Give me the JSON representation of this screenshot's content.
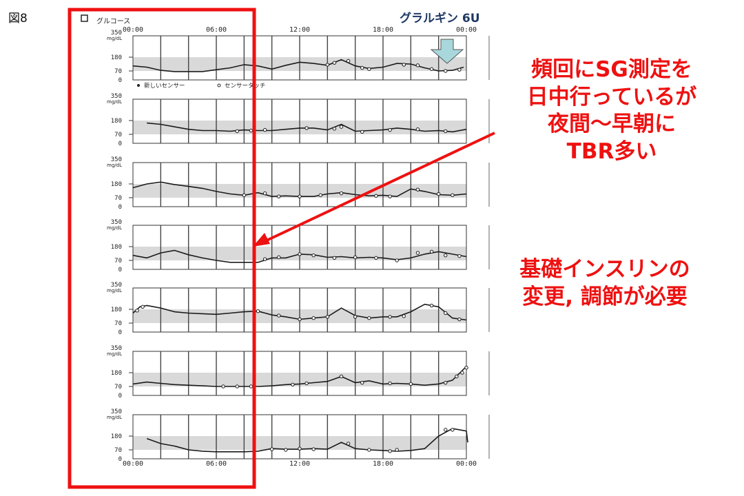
{
  "figure_label": "図8",
  "drug_label": "グラルギン 6U",
  "annotation_frequent": [
    "頻回にSG測定を",
    "日中行っているが",
    "夜間〜早朝に",
    "TBR多い"
  ],
  "annotation_basal": [
    "基礎インスリンの",
    "変更, 調節が必要"
  ],
  "chart_data": {
    "type": "line",
    "title": "グルコース",
    "legend": [
      "新しいセンサー",
      "センサータッチ"
    ],
    "x_tick_labels": [
      "00:00",
      "06:00",
      "12:00",
      "18:00",
      "00:00"
    ],
    "y_unit": "mg/dL",
    "y_tick_labels": [
      "350",
      "180",
      "70",
      "0"
    ],
    "ylim": [
      0,
      350
    ],
    "target_range": [
      70,
      180
    ],
    "x_range_hours": [
      0,
      24
    ],
    "days": [
      {
        "gaps": [
          [
            3.0,
            4.0
          ]
        ],
        "points": [
          [
            0,
            110
          ],
          [
            1,
            100
          ],
          [
            2,
            75
          ],
          [
            3,
            65
          ],
          [
            4,
            65
          ],
          [
            5,
            65
          ],
          [
            6,
            80
          ],
          [
            7,
            95
          ],
          [
            8,
            120
          ],
          [
            9,
            110
          ],
          [
            10,
            85
          ],
          [
            11,
            115
          ],
          [
            12,
            140
          ],
          [
            13,
            130
          ],
          [
            14,
            115
          ],
          [
            15,
            160
          ],
          [
            16,
            110
          ],
          [
            17,
            90
          ],
          [
            18,
            100
          ],
          [
            19,
            130
          ],
          [
            20,
            125
          ],
          [
            21,
            95
          ],
          [
            22,
            70
          ],
          [
            23,
            75
          ],
          [
            23.8,
            100
          ]
        ],
        "touches": [
          [
            14,
            120
          ],
          [
            14.5,
            135
          ],
          [
            15.5,
            150
          ],
          [
            16.5,
            95
          ],
          [
            17,
            85
          ],
          [
            19.5,
            120
          ],
          [
            20.5,
            115
          ],
          [
            21.5,
            85
          ],
          [
            22.5,
            70
          ],
          [
            23.5,
            80
          ]
        ]
      },
      {
        "gaps": [],
        "points": [
          [
            1,
            160
          ],
          [
            2,
            150
          ],
          [
            3,
            130
          ],
          [
            4,
            110
          ],
          [
            5,
            100
          ],
          [
            6,
            100
          ],
          [
            7,
            95
          ],
          [
            8,
            105
          ],
          [
            9,
            100
          ],
          [
            10,
            100
          ],
          [
            11,
            110
          ],
          [
            12,
            120
          ],
          [
            13,
            120
          ],
          [
            14,
            105
          ],
          [
            15,
            150
          ],
          [
            16,
            95
          ],
          [
            17,
            100
          ],
          [
            18,
            105
          ],
          [
            19,
            120
          ],
          [
            20,
            110
          ],
          [
            21,
            95
          ],
          [
            22,
            100
          ],
          [
            23,
            90
          ],
          [
            24,
            110
          ]
        ],
        "touches": [
          [
            7.5,
            95
          ],
          [
            8.5,
            100
          ],
          [
            9.5,
            105
          ],
          [
            12.5,
            120
          ],
          [
            14.5,
            115
          ],
          [
            15,
            130
          ],
          [
            16.5,
            90
          ],
          [
            18.5,
            105
          ],
          [
            20.5,
            110
          ],
          [
            22.5,
            95
          ]
        ]
      },
      {
        "gaps": [],
        "points": [
          [
            0,
            150
          ],
          [
            1,
            180
          ],
          [
            2,
            195
          ],
          [
            3,
            175
          ],
          [
            4,
            160
          ],
          [
            5,
            145
          ],
          [
            6,
            120
          ],
          [
            7,
            100
          ],
          [
            8,
            90
          ],
          [
            9,
            110
          ],
          [
            10,
            80
          ],
          [
            11,
            85
          ],
          [
            12,
            80
          ],
          [
            13,
            80
          ],
          [
            14,
            100
          ],
          [
            15,
            110
          ],
          [
            16,
            95
          ],
          [
            17,
            85
          ],
          [
            18,
            90
          ],
          [
            19,
            80
          ],
          [
            20,
            140
          ],
          [
            21,
            120
          ],
          [
            22,
            95
          ],
          [
            23,
            90
          ],
          [
            24,
            100
          ]
        ],
        "touches": [
          [
            8,
            90
          ],
          [
            9.5,
            105
          ],
          [
            10.5,
            80
          ],
          [
            12,
            80
          ],
          [
            13.5,
            90
          ],
          [
            15,
            105
          ],
          [
            17.5,
            85
          ],
          [
            18.5,
            80
          ],
          [
            20.5,
            135
          ],
          [
            22,
            100
          ],
          [
            23,
            90
          ]
        ]
      },
      {
        "gaps": [],
        "points": [
          [
            0,
            110
          ],
          [
            1,
            90
          ],
          [
            2,
            130
          ],
          [
            3,
            150
          ],
          [
            4,
            115
          ],
          [
            5,
            90
          ],
          [
            6,
            70
          ],
          [
            7,
            55
          ],
          [
            8,
            55
          ],
          [
            9,
            55
          ],
          [
            10,
            90
          ],
          [
            11,
            90
          ],
          [
            12,
            120
          ],
          [
            13,
            115
          ],
          [
            14,
            95
          ],
          [
            15,
            100
          ],
          [
            16,
            90
          ],
          [
            17,
            95
          ],
          [
            18,
            90
          ],
          [
            19,
            75
          ],
          [
            20,
            90
          ],
          [
            21,
            120
          ],
          [
            22,
            140
          ],
          [
            23,
            120
          ],
          [
            24,
            100
          ]
        ],
        "touches": [
          [
            9.5,
            80
          ],
          [
            10.5,
            95
          ],
          [
            12,
            120
          ],
          [
            13,
            110
          ],
          [
            14.5,
            90
          ],
          [
            16,
            95
          ],
          [
            17.5,
            90
          ],
          [
            19,
            70
          ],
          [
            20.5,
            130
          ],
          [
            21.5,
            140
          ],
          [
            22.5,
            110
          ],
          [
            23.5,
            105
          ]
        ]
      },
      {
        "gaps": [],
        "points": [
          [
            0,
            150
          ],
          [
            0.5,
            200
          ],
          [
            1,
            210
          ],
          [
            2,
            190
          ],
          [
            3,
            160
          ],
          [
            4,
            150
          ],
          [
            5,
            145
          ],
          [
            6,
            140
          ],
          [
            7,
            150
          ],
          [
            8,
            160
          ],
          [
            9,
            165
          ],
          [
            10,
            135
          ],
          [
            11,
            120
          ],
          [
            12,
            100
          ],
          [
            13,
            110
          ],
          [
            14,
            120
          ],
          [
            15,
            190
          ],
          [
            16,
            130
          ],
          [
            17,
            110
          ],
          [
            18,
            120
          ],
          [
            19,
            120
          ],
          [
            20,
            160
          ],
          [
            21,
            220
          ],
          [
            22,
            200
          ],
          [
            23,
            110
          ],
          [
            24,
            95
          ]
        ],
        "touches": [
          [
            0.3,
            170
          ],
          [
            0.7,
            200
          ],
          [
            9,
            165
          ],
          [
            10.5,
            130
          ],
          [
            12,
            100
          ],
          [
            13,
            110
          ],
          [
            14,
            120
          ],
          [
            16,
            120
          ],
          [
            17,
            110
          ],
          [
            18.5,
            120
          ],
          [
            19.5,
            125
          ],
          [
            21.5,
            210
          ],
          [
            22.5,
            150
          ],
          [
            23.5,
            100
          ]
        ]
      },
      {
        "gaps": [],
        "points": [
          [
            0,
            90
          ],
          [
            1,
            105
          ],
          [
            2,
            95
          ],
          [
            3,
            85
          ],
          [
            4,
            80
          ],
          [
            5,
            75
          ],
          [
            6,
            70
          ],
          [
            7,
            70
          ],
          [
            8,
            70
          ],
          [
            9,
            70
          ],
          [
            10,
            75
          ],
          [
            11,
            85
          ],
          [
            12,
            90
          ],
          [
            13,
            100
          ],
          [
            14,
            110
          ],
          [
            15,
            150
          ],
          [
            16,
            100
          ],
          [
            17,
            115
          ],
          [
            18,
            90
          ],
          [
            19,
            95
          ],
          [
            20,
            90
          ],
          [
            21,
            80
          ],
          [
            22,
            90
          ],
          [
            23,
            120
          ],
          [
            24,
            230
          ]
        ],
        "touches": [
          [
            6.5,
            70
          ],
          [
            7.5,
            70
          ],
          [
            8.5,
            70
          ],
          [
            11.5,
            85
          ],
          [
            12.5,
            95
          ],
          [
            15,
            150
          ],
          [
            16.5,
            100
          ],
          [
            18.5,
            95
          ],
          [
            20,
            90
          ],
          [
            22.5,
            100
          ],
          [
            23.3,
            150
          ],
          [
            23.7,
            180
          ],
          [
            24,
            220
          ]
        ]
      },
      {
        "gaps": [],
        "points": [
          [
            1,
            160
          ],
          [
            2,
            120
          ],
          [
            3,
            100
          ],
          [
            4,
            70
          ],
          [
            5,
            60
          ],
          [
            6,
            55
          ],
          [
            7,
            55
          ],
          [
            8,
            55
          ],
          [
            9,
            60
          ],
          [
            10,
            80
          ],
          [
            11,
            75
          ],
          [
            12,
            75
          ],
          [
            13,
            80
          ],
          [
            14,
            75
          ],
          [
            15,
            130
          ],
          [
            16,
            80
          ],
          [
            17,
            70
          ],
          [
            18,
            65
          ],
          [
            19,
            60
          ],
          [
            20,
            65
          ],
          [
            21,
            80
          ],
          [
            22,
            180
          ],
          [
            23,
            240
          ],
          [
            24,
            220
          ],
          [
            24.1,
            130
          ]
        ],
        "touches": [
          [
            10,
            75
          ],
          [
            11,
            70
          ],
          [
            12,
            80
          ],
          [
            13,
            75
          ],
          [
            15.5,
            120
          ],
          [
            17,
            70
          ],
          [
            18.5,
            60
          ],
          [
            19,
            70
          ],
          [
            22.5,
            230
          ],
          [
            23,
            230
          ]
        ]
      }
    ]
  }
}
